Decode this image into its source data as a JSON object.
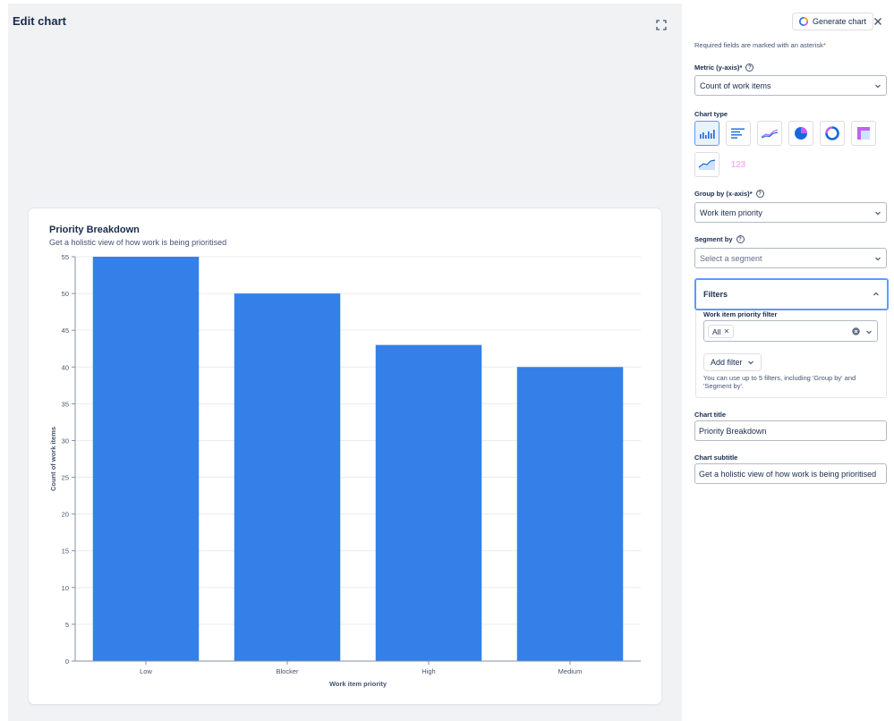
{
  "panel": {
    "title": "Edit chart",
    "generate_label": "Generate chart",
    "required_note": "Required fields are marked with an asterisk",
    "required_mark": "*",
    "metric": {
      "label": "Metric (y-axis)",
      "value": "Count of work items"
    },
    "chart_type_label": "Chart type",
    "chart_types": [
      "vertical-bar-chart-icon",
      "horizontal-bar-chart-icon",
      "line-chart-icon",
      "pie-chart-icon",
      "donut-chart-icon",
      "heatmap-icon",
      "area-chart-icon",
      "single-number-icon"
    ],
    "single_number_text": "123",
    "group_by": {
      "label": "Group by (x-axis)",
      "value": "Work item priority"
    },
    "segment_by": {
      "label": "Segment by",
      "placeholder": "Select a segment"
    },
    "filters": {
      "title": "Filters",
      "priority_filter_label": "Work item priority filter",
      "tag": "All",
      "add_filter_label": "Add filter",
      "note": "You can use up to 5 filters, including 'Group by' and 'Segment by'."
    },
    "chart_title": {
      "label": "Chart title",
      "value": "Priority Breakdown"
    },
    "chart_subtitle": {
      "label": "Chart subtitle",
      "value": "Get a holistic view of how work is being prioritised"
    }
  },
  "colors": {
    "bar": "#3580e8",
    "accent": "#579dff",
    "required": "#c9372c"
  },
  "chart_data": {
    "type": "bar",
    "title": "Priority Breakdown",
    "subtitle": "Get a holistic view of how work is being prioritised",
    "categories": [
      "Low",
      "Blocker",
      "High",
      "Medium"
    ],
    "values": [
      55,
      50,
      43,
      40
    ],
    "xlabel": "Work item priority",
    "ylabel": "Count of work items",
    "ylim": [
      0,
      55
    ],
    "yticks": [
      0,
      5,
      10,
      15,
      20,
      25,
      30,
      35,
      40,
      45,
      50,
      55
    ],
    "grid": true
  }
}
